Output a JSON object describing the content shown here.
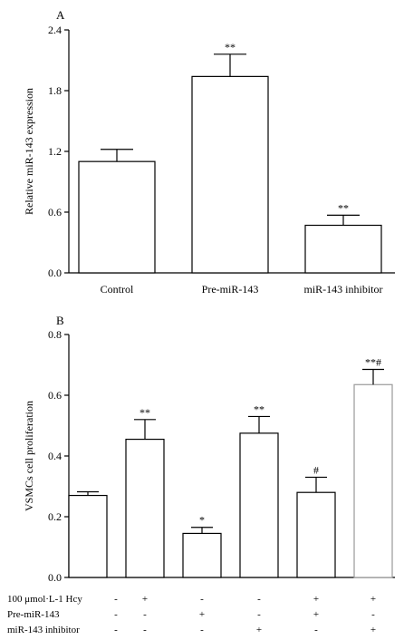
{
  "chart_data": [
    {
      "type": "bar",
      "panel_label": "A",
      "ylabel": "Relative miR-143 expression",
      "ylim": [
        0,
        2.4
      ],
      "yticks": [
        "0.0",
        "0.6",
        "1.2",
        "1.8",
        "2.4"
      ],
      "categories": [
        "Control",
        "Pre-miR-143",
        "miR-143 inhibitor"
      ],
      "values": [
        1.1,
        1.94,
        0.47
      ],
      "errors": [
        0.12,
        0.22,
        0.1
      ],
      "annotations": [
        "",
        "**",
        "**"
      ]
    },
    {
      "type": "bar",
      "panel_label": "B",
      "ylabel": "VSMCs cell proliferation",
      "ylim": [
        0,
        0.8
      ],
      "yticks": [
        "0.0",
        "0.2",
        "0.4",
        "0.6",
        "0.8"
      ],
      "values": [
        0.27,
        0.455,
        0.145,
        0.475,
        0.28,
        0.635
      ],
      "errors": [
        0.012,
        0.065,
        0.02,
        0.055,
        0.05,
        0.05
      ],
      "annotations": [
        "",
        "**",
        "*",
        "**",
        "#",
        "**#"
      ],
      "conditions": [
        {
          "label": "100 μmol·L-1 Hcy",
          "marks": [
            "-",
            "+",
            "-",
            "-",
            "+",
            "+"
          ]
        },
        {
          "label": "Pre-miR-143",
          "marks": [
            "-",
            "-",
            "+",
            "-",
            "+",
            "-"
          ]
        },
        {
          "label": "miR-143 inhibitor",
          "marks": [
            "-",
            "-",
            "-",
            "+",
            "-",
            "+"
          ]
        }
      ]
    }
  ]
}
